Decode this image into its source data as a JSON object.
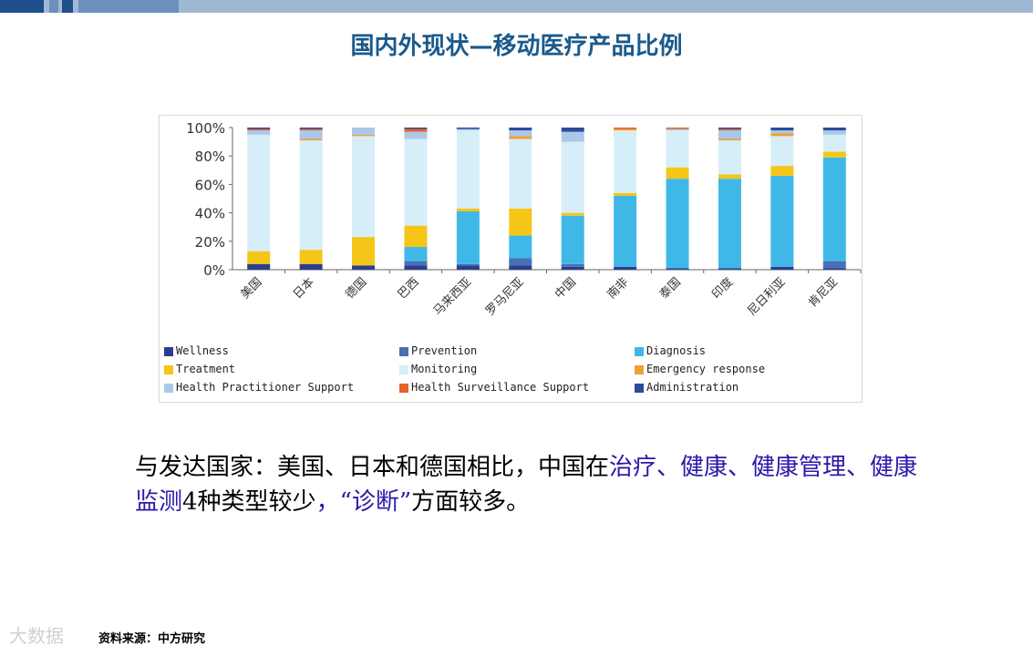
{
  "page": {
    "title": "国内外现状—移动医疗产品比例"
  },
  "caption": {
    "seg1": "与发达国家：美国、日本和德国相比，中国在",
    "seg2": "治疗、健康、健康管理、健康监测",
    "seg3": "4种类型较少",
    "seg4": "，“诊断”",
    "seg5": "方面较多。"
  },
  "source": "资料来源：中方研究",
  "watermark": "大数据",
  "chart_data": {
    "type": "bar",
    "stacked": true,
    "categories": [
      "美国",
      "日本",
      "德国",
      "巴西",
      "马来西亚",
      "罗马尼亚",
      "中国",
      "南非",
      "泰国",
      "印度",
      "尼日利亚",
      "肯尼亚"
    ],
    "y_ticks": [
      "0%",
      "20%",
      "40%",
      "60%",
      "80%",
      "100%"
    ],
    "ylim": [
      0,
      100
    ],
    "legend_position": "bottom",
    "series": [
      {
        "name": "Wellness",
        "color": "#2a3d8f",
        "values": [
          4,
          4,
          3,
          3,
          3,
          3,
          2,
          2,
          1,
          1,
          2,
          1
        ]
      },
      {
        "name": "Prevention",
        "color": "#4a6fb5",
        "values": [
          0,
          0,
          0,
          3,
          1,
          5,
          2,
          0,
          0,
          0,
          0,
          5
        ]
      },
      {
        "name": "Diagnosis",
        "color": "#3fb8e8",
        "values": [
          0,
          0,
          0,
          10,
          37,
          16,
          34,
          50,
          63,
          63,
          64,
          73
        ]
      },
      {
        "name": "Treatment",
        "color": "#f5c518",
        "values": [
          9,
          10,
          20,
          15,
          2,
          19,
          2,
          2,
          8,
          3,
          7,
          4
        ]
      },
      {
        "name": "Monitoring",
        "color": "#d6eef7",
        "values": [
          82,
          77,
          71,
          61,
          55,
          49,
          50,
          44,
          26,
          24,
          21,
          12
        ]
      },
      {
        "name": "Emergency response",
        "color": "#f0a030",
        "values": [
          0,
          1,
          1,
          0,
          0,
          2,
          0,
          1,
          0,
          1,
          2,
          0
        ]
      },
      {
        "name": "Health Practitioner Support",
        "color": "#a9c8ea",
        "values": [
          3,
          6,
          5,
          5,
          1,
          4,
          7,
          0,
          1,
          6,
          2,
          3
        ]
      },
      {
        "name": "Health Surveillance Support",
        "color": "#e8622c",
        "values": [
          1,
          1,
          0,
          2,
          0,
          0,
          0,
          1,
          1,
          1,
          0,
          0
        ]
      },
      {
        "name": "Administration",
        "color": "#2b4c9b",
        "values": [
          1,
          1,
          0,
          1,
          1,
          2,
          3,
          0,
          0,
          1,
          2,
          2
        ]
      }
    ]
  }
}
